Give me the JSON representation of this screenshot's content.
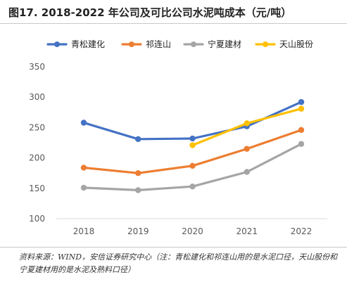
{
  "title": "图17. 2018-2022 年公司及可比公司水泥吨成本（元/吨）",
  "source": "资料来源：WIND，安信证券研究中心（注：青松建化和祁连山用的是水泥口径，天山股份和宁夏建材用的是水泥及熟料口径）",
  "chart_data": {
    "type": "line",
    "x": [
      "2018",
      "2019",
      "2020",
      "2021",
      "2022"
    ],
    "ylim": [
      100,
      350
    ],
    "yticks": [
      100,
      150,
      200,
      250,
      300,
      350
    ],
    "grid": false,
    "legend_position": "top",
    "series": [
      {
        "name": "青松建化",
        "color": "#4472C4",
        "values": [
          258,
          231,
          232,
          252,
          292
        ]
      },
      {
        "name": "祁连山",
        "color": "#ED7D31",
        "values": [
          184,
          175,
          187,
          215,
          246
        ]
      },
      {
        "name": "宁夏建材",
        "color": "#A5A5A5",
        "values": [
          151,
          147,
          153,
          177,
          223
        ]
      },
      {
        "name": "天山股份",
        "color": "#FFC000",
        "values": [
          null,
          null,
          221,
          257,
          281
        ]
      }
    ]
  }
}
